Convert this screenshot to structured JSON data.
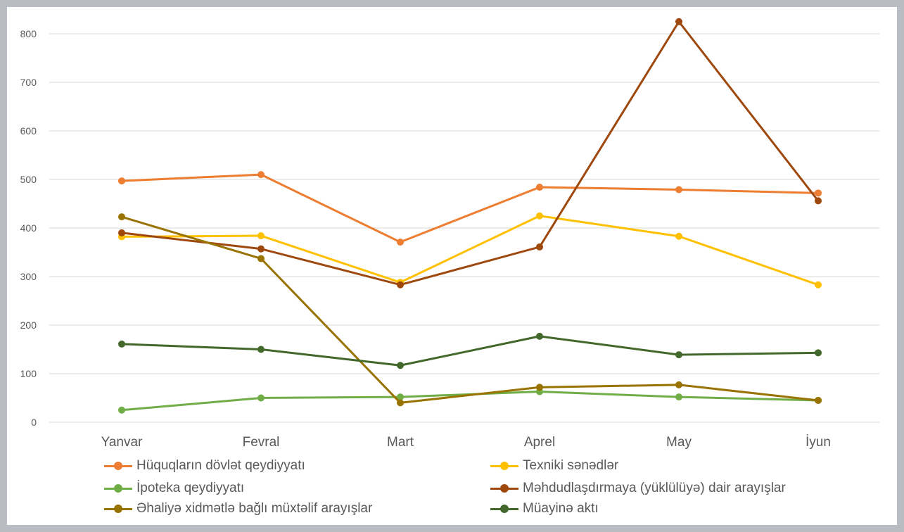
{
  "chart_data": {
    "type": "line",
    "title": "",
    "xlabel": "",
    "ylabel": "",
    "categories": [
      "Yanvar",
      "Fevral",
      "Mart",
      "Aprel",
      "May",
      "İyun"
    ],
    "ylim": [
      0,
      800
    ],
    "yticks": [
      0,
      100,
      200,
      300,
      400,
      500,
      600,
      700,
      800
    ],
    "grid": true,
    "legend_position": "bottom",
    "series": [
      {
        "name": "Hüquqların dövlət qeydiyyatı",
        "color": "#ed7d31",
        "values": [
          497,
          510,
          371,
          484,
          479,
          472
        ]
      },
      {
        "name": "Texniki sənədlər",
        "color": "#ffc000",
        "values": [
          382,
          384,
          288,
          425,
          383,
          283
        ]
      },
      {
        "name": "İpoteka qeydiyyatı",
        "color": "#70ad47",
        "values": [
          25,
          50,
          52,
          63,
          52,
          45
        ]
      },
      {
        "name": "Məhdudlaşdırmaya (yüklülüyə) dair arayışlar",
        "color": "#9e480e",
        "values": [
          390,
          357,
          283,
          361,
          825,
          456
        ]
      },
      {
        "name": "Əhaliyə xidmətlə bağlı müxtəlif arayışlar",
        "color": "#997300",
        "values": [
          423,
          337,
          40,
          72,
          77,
          45
        ]
      },
      {
        "name": "Müayinə aktı",
        "color": "#43682b",
        "values": [
          161,
          150,
          117,
          177,
          139,
          143
        ]
      }
    ]
  }
}
